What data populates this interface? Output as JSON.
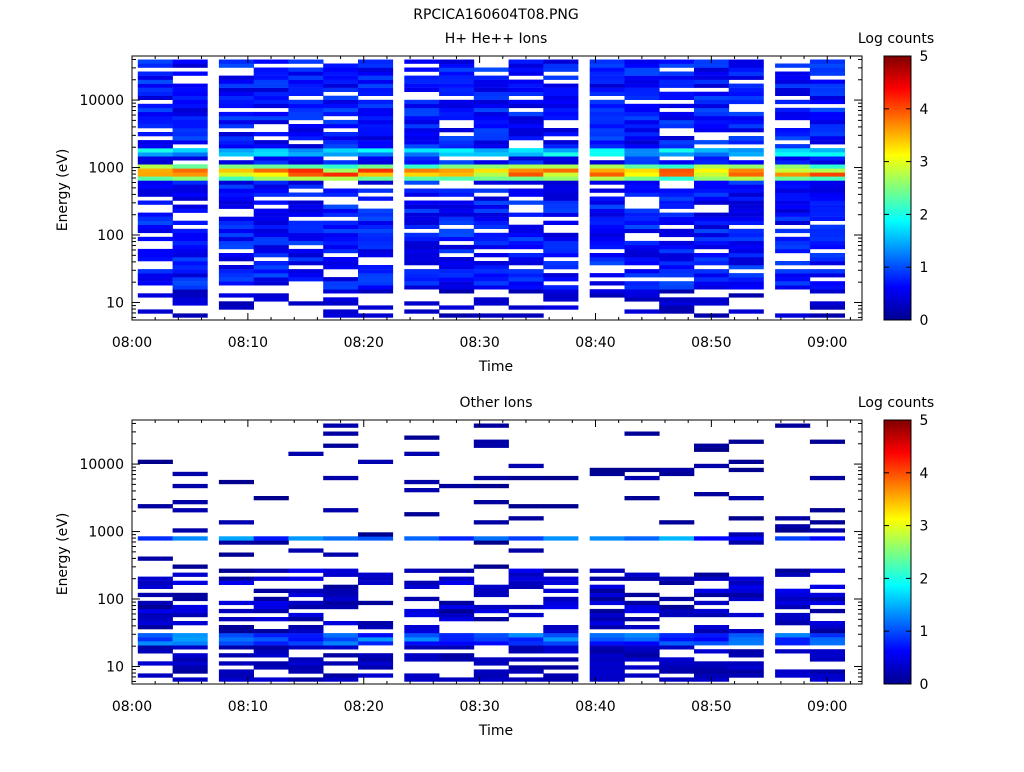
{
  "figure_title": "RPCICA160604T08.PNG",
  "chart_data": [
    {
      "type": "heatmap",
      "title": "H+ He++ Ions",
      "xlabel": "Time",
      "ylabel": "Energy (eV)",
      "x_ticks": [
        "08:00",
        "08:10",
        "08:20",
        "08:30",
        "08:40",
        "08:50",
        "09:00"
      ],
      "y_ticks": [
        "10",
        "100",
        "1000",
        "10000"
      ],
      "y_scale": "log",
      "x_range": [
        "08:00",
        "09:03"
      ],
      "y_range": [
        5.5,
        45000
      ],
      "time_columns": [
        "08:02",
        "08:05",
        "08:09",
        "08:12",
        "08:15",
        "08:18",
        "08:21",
        "08:25",
        "08:28",
        "08:31",
        "08:34",
        "08:37",
        "08:41",
        "08:44",
        "08:47",
        "08:50",
        "08:53",
        "08:57",
        "09:00"
      ],
      "energy_bins_eV_range": [
        6,
        40000
      ],
      "energy_bin_count": 64,
      "colorbar": {
        "label": "Log counts",
        "ticks": [
          "0",
          "1",
          "2",
          "3",
          "4",
          "5"
        ],
        "range": [
          0,
          5
        ]
      },
      "features": {
        "peak_band_eV": 800,
        "peak_log_counts": 4.2,
        "secondary_band_eV": 1700,
        "secondary_log_counts": 2.0,
        "background_log_counts": 0.4,
        "low_energy_cutoff_eV": 15
      }
    },
    {
      "type": "heatmap",
      "title": "Other Ions",
      "xlabel": "Time",
      "ylabel": "Energy (eV)",
      "x_ticks": [
        "08:00",
        "08:10",
        "08:20",
        "08:30",
        "08:40",
        "08:50",
        "09:00"
      ],
      "y_ticks": [
        "10",
        "100",
        "1000",
        "10000"
      ],
      "y_scale": "log",
      "x_range": [
        "08:00",
        "09:03"
      ],
      "y_range": [
        5.5,
        45000
      ],
      "time_columns": [
        "08:02",
        "08:05",
        "08:09",
        "08:12",
        "08:15",
        "08:18",
        "08:21",
        "08:25",
        "08:28",
        "08:31",
        "08:34",
        "08:37",
        "08:41",
        "08:44",
        "08:47",
        "08:50",
        "08:53",
        "08:57",
        "09:00"
      ],
      "energy_bins_eV_range": [
        6,
        40000
      ],
      "energy_bin_count": 64,
      "colorbar": {
        "label": "Log counts",
        "ticks": [
          "0",
          "1",
          "2",
          "3",
          "4",
          "5"
        ],
        "range": [
          0,
          5
        ]
      },
      "features": {
        "peak_band_eV": 800,
        "peak_log_counts": 1.6,
        "low_energy_band_eV": 25,
        "low_energy_log_counts": 1.4,
        "background_log_counts": 0.1
      }
    }
  ]
}
